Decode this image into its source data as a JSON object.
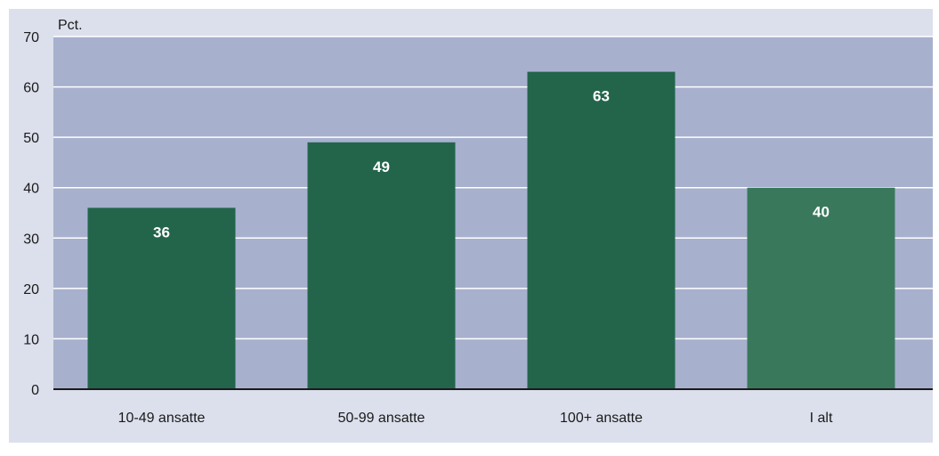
{
  "chart_data": {
    "type": "bar",
    "title": "",
    "xlabel": "",
    "ylabel": "",
    "unit_label": "Pct.",
    "categories": [
      "10-49 ansatte",
      "50-99 ansatte",
      "100+ ansatte",
      "I alt"
    ],
    "values": [
      36,
      49,
      63,
      40
    ],
    "value_labels": [
      "36",
      "49",
      "63",
      "40"
    ],
    "ylim": [
      0,
      70
    ],
    "yticks": [
      0,
      10,
      20,
      30,
      40,
      50,
      60,
      70
    ],
    "ytick_labels": [
      "0",
      "10",
      "20",
      "30",
      "40",
      "50",
      "60",
      "70"
    ],
    "grid": true,
    "legend": "none",
    "colors": {
      "page_background": "#dce0ec",
      "plot_background": "#a7b1ce",
      "gridline": "#ffffff",
      "bar": "#23654b",
      "bar_total": "#3a785c",
      "axis": "#1a1a1a",
      "value_text": "#ffffff"
    }
  }
}
